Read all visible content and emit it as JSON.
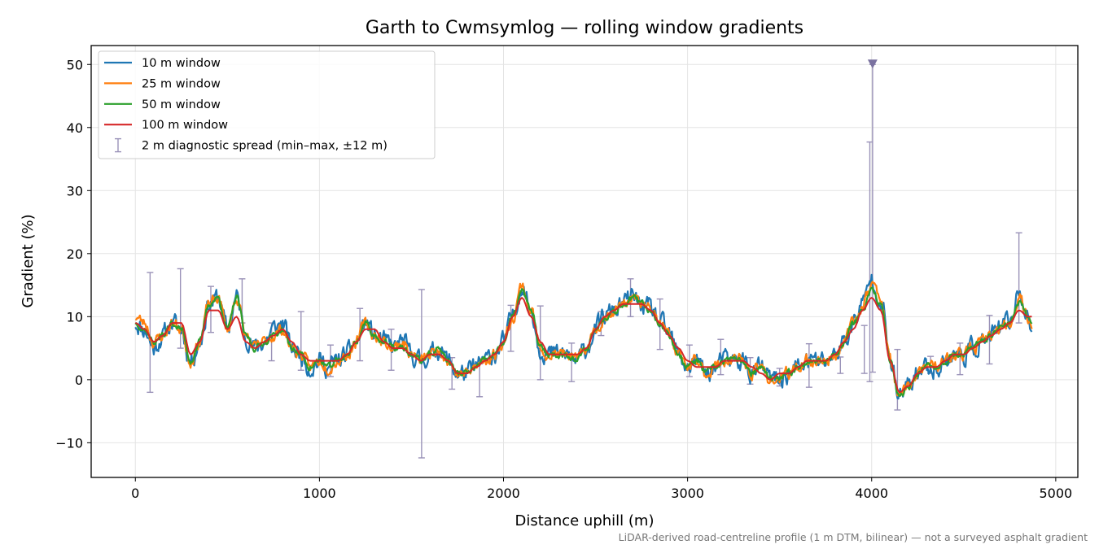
{
  "chart_data": {
    "type": "line",
    "title": "Garth to Cwmsymlog — rolling window gradients",
    "xlabel": "Distance uphill (m)",
    "ylabel": "Gradient (%)",
    "xlim": [
      -240,
      5120
    ],
    "ylim": [
      -15.5,
      53
    ],
    "xticks": [
      0,
      1000,
      2000,
      3000,
      4000,
      5000
    ],
    "xtick_labels": [
      "0",
      "1000",
      "2000",
      "3000",
      "4000",
      "5000"
    ],
    "yticks": [
      -10,
      0,
      10,
      20,
      30,
      40,
      50
    ],
    "ytick_labels": [
      "−10",
      "0",
      "10",
      "20",
      "30",
      "40",
      "50"
    ],
    "grid": true,
    "legend_position": "top-left",
    "footnote": "LiDAR-derived road-centreline profile (1 m DTM, bilinear) — not a surveyed asphalt gradient",
    "profile_x": [
      0,
      50,
      100,
      150,
      200,
      250,
      300,
      350,
      400,
      450,
      500,
      550,
      600,
      650,
      700,
      750,
      800,
      850,
      900,
      950,
      1000,
      1050,
      1100,
      1150,
      1200,
      1250,
      1300,
      1350,
      1400,
      1450,
      1500,
      1550,
      1600,
      1650,
      1700,
      1750,
      1800,
      1850,
      1900,
      1950,
      2000,
      2050,
      2100,
      2150,
      2200,
      2250,
      2300,
      2350,
      2400,
      2450,
      2500,
      2550,
      2600,
      2650,
      2700,
      2750,
      2800,
      2850,
      2900,
      2950,
      3000,
      3050,
      3100,
      3150,
      3200,
      3250,
      3300,
      3350,
      3400,
      3450,
      3500,
      3550,
      3600,
      3650,
      3700,
      3750,
      3800,
      3850,
      3900,
      3950,
      4000,
      4050,
      4100,
      4150,
      4200,
      4250,
      4300,
      4350,
      4400,
      4450,
      4500,
      4550,
      4600,
      4650,
      4700,
      4750,
      4800,
      4850,
      4870
    ],
    "series": [
      {
        "name": "10 m window",
        "color": "#1f77b4",
        "width": 2.2,
        "noise": 1.8,
        "seed": 11,
        "values": [
          9,
          8,
          5,
          7,
          9,
          8,
          3,
          6,
          12,
          13,
          8,
          13,
          7,
          5,
          6,
          8,
          9,
          5,
          4,
          2,
          3,
          2,
          3,
          4,
          6,
          9,
          7,
          6,
          5,
          6,
          4,
          3,
          4,
          5,
          3,
          1,
          1,
          2,
          3,
          4,
          6,
          10,
          15,
          11,
          5,
          4,
          4,
          4,
          3,
          5,
          8,
          10,
          11,
          12,
          13,
          12,
          11,
          9,
          7,
          4,
          2,
          3,
          1,
          2,
          3,
          3,
          3,
          1,
          2,
          0,
          0,
          1,
          2,
          3,
          3,
          3,
          4,
          6,
          9,
          12,
          16,
          13,
          3,
          -3,
          -1,
          1,
          2,
          2,
          3,
          4,
          4,
          5,
          6,
          7,
          8,
          9,
          14,
          10,
          8
        ]
      },
      {
        "name": "25 m window",
        "color": "#ff7f0e",
        "width": 2.2,
        "noise": 1.1,
        "seed": 23,
        "values": [
          10,
          9,
          6,
          7,
          9,
          8,
          3,
          6,
          12,
          13,
          8,
          13,
          7,
          5,
          6,
          7,
          8,
          5,
          4,
          2,
          3,
          2,
          3,
          4,
          6,
          9,
          7,
          6,
          5,
          6,
          4,
          3,
          4,
          5,
          3,
          1,
          1,
          2,
          3,
          4,
          6,
          10,
          15,
          11,
          5,
          4,
          4,
          4,
          3,
          5,
          8,
          10,
          11,
          12,
          13,
          12,
          11,
          9,
          7,
          4,
          2,
          3,
          1,
          2,
          3,
          3,
          3,
          1,
          2,
          0,
          0,
          1,
          2,
          3,
          3,
          3,
          4,
          6,
          9,
          12,
          15,
          13,
          3,
          -3,
          -1,
          1,
          2,
          2,
          3,
          4,
          4,
          5,
          6,
          7,
          8,
          9,
          13,
          10,
          8
        ]
      },
      {
        "name": "50 m window",
        "color": "#2ca02c",
        "width": 2.2,
        "noise": 0.6,
        "seed": 37,
        "values": [
          9,
          8,
          6,
          7,
          9,
          8,
          3,
          6,
          12,
          13,
          8,
          13,
          7,
          5,
          6,
          7,
          8,
          5,
          4,
          2,
          3,
          2,
          3,
          4,
          6,
          9,
          7,
          6,
          5,
          5,
          4,
          3,
          4,
          5,
          3,
          1,
          1,
          2,
          3,
          4,
          6,
          10,
          14,
          11,
          5,
          4,
          4,
          4,
          3,
          5,
          8,
          10,
          11,
          12,
          13,
          12,
          11,
          9,
          7,
          4,
          2,
          3,
          1,
          2,
          3,
          3,
          3,
          1,
          2,
          0,
          0,
          1,
          2,
          3,
          3,
          3,
          4,
          6,
          9,
          11,
          14,
          12,
          3,
          -3,
          -1,
          1,
          2,
          2,
          3,
          4,
          4,
          5,
          6,
          7,
          8,
          9,
          12,
          10,
          9
        ]
      },
      {
        "name": "100 m window",
        "color": "#d62728",
        "width": 2.0,
        "noise": 0,
        "seed": 0,
        "values": [
          9,
          8,
          6,
          7,
          9,
          9,
          4,
          6,
          11,
          11,
          8,
          10,
          6,
          5,
          6,
          7,
          8,
          6,
          4,
          3,
          3,
          3,
          3,
          4,
          6,
          8,
          8,
          6,
          5,
          5,
          4,
          3,
          4,
          4,
          3,
          1,
          1,
          2,
          3,
          4,
          6,
          10,
          13,
          10,
          6,
          4,
          4,
          4,
          4,
          5,
          8,
          10,
          11,
          12,
          12,
          12,
          11,
          9,
          7,
          5,
          3,
          2,
          2,
          2,
          3,
          3,
          3,
          2,
          1,
          0,
          1,
          1,
          2,
          3,
          3,
          3,
          4,
          6,
          8,
          11,
          13,
          11,
          3,
          -2,
          -1,
          1,
          2,
          2,
          3,
          4,
          4,
          5,
          6,
          7,
          8,
          9,
          11,
          10,
          10
        ]
      }
    ],
    "errorbar_series": {
      "name": "2 m diagnostic spread (min–max, ±12 m)",
      "color": "#9a92b8",
      "points": [
        {
          "x": 80,
          "min": -2,
          "max": 17
        },
        {
          "x": 245,
          "min": 5,
          "max": 17.6
        },
        {
          "x": 410,
          "min": 7.5,
          "max": 14.8
        },
        {
          "x": 580,
          "min": 9,
          "max": 16
        },
        {
          "x": 740,
          "min": 3,
          "max": 9
        },
        {
          "x": 900,
          "min": 1.5,
          "max": 10.8
        },
        {
          "x": 1060,
          "min": 0.5,
          "max": 5.5
        },
        {
          "x": 1220,
          "min": 3,
          "max": 11.3
        },
        {
          "x": 1390,
          "min": 1.5,
          "max": 8
        },
        {
          "x": 1555,
          "min": -12.4,
          "max": 14.3
        },
        {
          "x": 1720,
          "min": -1.5,
          "max": 3.5
        },
        {
          "x": 1870,
          "min": -2.7,
          "max": 2.5
        },
        {
          "x": 2040,
          "min": 4.5,
          "max": 11.8
        },
        {
          "x": 2200,
          "min": 0,
          "max": 11.7
        },
        {
          "x": 2370,
          "min": -0.3,
          "max": 5.8
        },
        {
          "x": 2530,
          "min": 7,
          "max": 10.8
        },
        {
          "x": 2690,
          "min": 10,
          "max": 16
        },
        {
          "x": 2850,
          "min": 4.8,
          "max": 12.8
        },
        {
          "x": 3010,
          "min": 0.5,
          "max": 5.5
        },
        {
          "x": 3180,
          "min": 0.8,
          "max": 6.4
        },
        {
          "x": 3340,
          "min": -0.7,
          "max": 3.5
        },
        {
          "x": 3500,
          "min": -1,
          "max": 1.8
        },
        {
          "x": 3660,
          "min": -1.2,
          "max": 5.7
        },
        {
          "x": 3830,
          "min": 1,
          "max": 3.6
        },
        {
          "x": 3960,
          "min": 1,
          "max": 8.6
        },
        {
          "x": 3990,
          "min": -0.3,
          "max": 37.7
        },
        {
          "x": 4005,
          "min": 1.2,
          "max": 50
        },
        {
          "x": 4140,
          "min": -4.8,
          "max": 4.8
        },
        {
          "x": 4320,
          "min": 1,
          "max": 3.7
        },
        {
          "x": 4480,
          "min": 0.8,
          "max": 5.8
        },
        {
          "x": 4640,
          "min": 2.5,
          "max": 10.2
        },
        {
          "x": 4800,
          "min": 9,
          "max": 23.3
        }
      ]
    },
    "marker": {
      "x": 4005,
      "y": 50,
      "shape": "triangle-down",
      "color": "#7a72a0"
    }
  }
}
